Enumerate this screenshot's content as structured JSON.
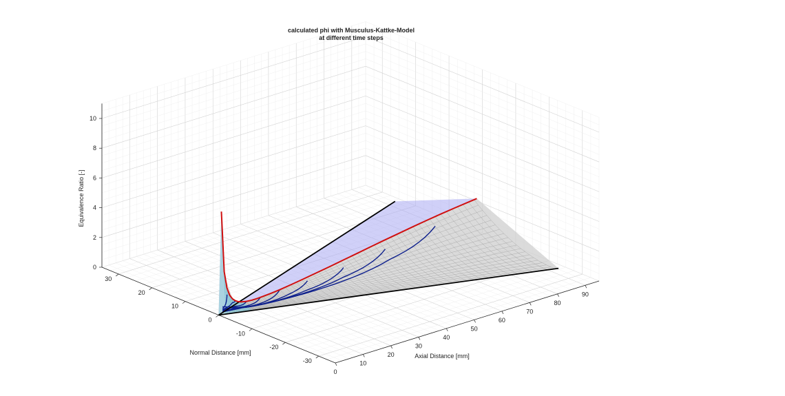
{
  "chart_data": {
    "type": "surface3d",
    "title_line1": "calculated phi with Musculus-Kattke-Model",
    "title_line2": "at different time steps",
    "xlabel": "Axial Distance [mm]",
    "ylabel": "Normal Distance [mm]",
    "zlabel": "Equivalence Ratio [-]",
    "xlim": [
      0,
      95
    ],
    "ylim": [
      -35,
      35
    ],
    "zlim": [
      0,
      11
    ],
    "xticks": [
      "0",
      "10",
      "20",
      "30",
      "40",
      "50",
      "60",
      "70",
      "80",
      "90"
    ],
    "yticks": [
      "30",
      "20",
      "10",
      "0",
      "-10",
      "-20",
      "-30"
    ],
    "zticks": [
      "0",
      "2",
      "4",
      "6",
      "8",
      "10"
    ],
    "grid": true,
    "colors": {
      "final_profile": "#d01010",
      "time_steps": "#0d1f8c",
      "surface_mesh": "#9a9a9a",
      "upper_sheet": "#a9a9f2",
      "inner_core": "#7fd8e8",
      "spray_edges": "#000000"
    },
    "spray_edges": [
      {
        "x": [
          0,
          93
        ],
        "y": [
          0,
          -24.5
        ]
      },
      {
        "x": [
          0,
          93
        ],
        "y": [
          0,
          24.5
        ]
      }
    ],
    "final_profile": {
      "x": [
        1,
        2,
        3,
        4,
        5,
        6,
        7,
        8,
        10,
        12,
        14,
        16,
        19,
        22,
        26,
        30,
        35,
        40,
        45,
        50,
        55,
        60,
        65,
        70,
        75,
        80,
        85,
        90,
        93
      ],
      "z": [
        6.9,
        2.8,
        1.65,
        1.1,
        0.8,
        0.62,
        0.5,
        0.42,
        0.34,
        0.31,
        0.31,
        0.33,
        0.37,
        0.43,
        0.53,
        0.64,
        0.79,
        0.94,
        1.1,
        1.26,
        1.42,
        1.58,
        1.73,
        1.88,
        2.02,
        2.15,
        2.27,
        2.38,
        2.44
      ]
    },
    "time_steps": [
      {
        "tip_x": 3,
        "tip_z": 1.2
      },
      {
        "tip_x": 6,
        "tip_z": 1.0
      },
      {
        "tip_x": 10,
        "tip_z": 0.8
      },
      {
        "tip_x": 15,
        "tip_z": 0.62
      },
      {
        "tip_x": 22,
        "tip_z": 0.5
      },
      {
        "tip_x": 32,
        "tip_z": 0.45
      },
      {
        "tip_x": 45,
        "tip_z": 0.58
      },
      {
        "tip_x": 60,
        "tip_z": 0.95
      },
      {
        "tip_x": 78,
        "tip_z": 1.45
      }
    ]
  }
}
